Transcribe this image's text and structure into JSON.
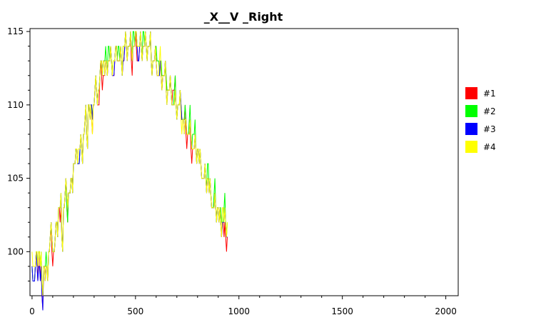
{
  "chart_data": {
    "type": "line",
    "title": "_X__V _Right",
    "xlabel": "",
    "ylabel": "",
    "xlim": [
      -10,
      2060
    ],
    "ylim": [
      97,
      115.2
    ],
    "x_ticks": [
      0,
      500,
      1000,
      1500,
      2000
    ],
    "y_ticks": [
      100,
      105,
      110,
      115
    ],
    "grid": false,
    "legend_position": "right",
    "x_step": 8,
    "series": [
      {
        "name": "#1",
        "color": "#ff0000",
        "values": [
          99,
          98,
          99,
          99,
          100,
          98,
          97,
          99,
          98,
          99,
          100,
          101,
          100,
          100,
          101,
          102,
          103,
          102,
          101,
          103,
          104,
          103,
          104,
          104,
          105,
          106,
          106,
          107,
          106,
          107,
          107,
          108,
          109,
          108,
          110,
          109,
          109,
          110,
          111,
          111,
          110,
          112,
          112,
          112,
          112,
          113,
          113,
          113,
          113,
          112,
          113,
          114,
          113,
          113,
          113,
          113,
          114,
          114,
          114,
          114,
          113,
          114,
          114,
          114,
          113,
          114,
          114,
          114,
          114,
          114,
          114,
          114,
          113,
          113,
          113,
          113,
          112,
          112,
          112,
          112,
          112,
          112,
          111,
          111,
          111,
          111,
          111,
          110,
          110,
          110,
          110,
          109,
          109,
          108,
          108,
          108,
          107,
          107,
          107,
          107,
          107,
          106,
          106,
          105,
          105,
          105,
          105,
          104,
          104,
          103,
          103,
          103,
          103,
          102,
          102,
          102,
          101,
          101,
          101
        ]
      },
      {
        "name": "#2",
        "color": "#00ff00",
        "values": [
          99,
          98,
          99,
          100,
          100,
          99,
          98,
          99,
          99,
          99,
          100,
          101,
          101,
          100,
          101,
          102,
          103,
          103,
          101,
          103,
          104,
          103,
          104,
          104,
          105,
          106,
          106,
          107,
          106,
          107,
          107,
          108,
          109,
          108,
          110,
          109,
          110,
          110,
          111,
          111,
          111,
          112,
          113,
          113,
          113,
          113,
          114,
          113,
          113,
          113,
          113,
          114,
          114,
          113,
          113,
          114,
          114,
          114,
          114,
          114,
          114,
          115,
          114,
          115,
          114,
          114,
          114,
          115,
          114,
          114,
          114,
          114,
          113,
          113,
          113,
          114,
          113,
          112,
          113,
          112,
          112,
          112,
          111,
          111,
          111,
          110,
          111,
          110,
          110,
          110,
          110,
          109,
          109,
          109,
          108,
          109,
          108,
          108,
          108,
          107,
          107,
          106,
          106,
          105,
          105,
          105,
          106,
          104,
          104,
          103,
          104,
          103,
          103,
          102,
          103,
          102,
          103,
          102,
          102
        ]
      },
      {
        "name": "#3",
        "color": "#0000ff",
        "values": [
          99,
          98,
          99,
          99,
          99,
          98,
          97,
          99,
          98,
          99,
          100,
          101,
          101,
          100,
          101,
          102,
          103,
          103,
          101,
          103,
          104,
          104,
          104,
          104,
          105,
          106,
          106,
          107,
          106,
          107,
          107,
          108,
          109,
          108,
          110,
          109,
          110,
          110,
          111,
          111,
          111,
          112,
          113,
          113,
          112,
          113,
          113,
          113,
          113,
          112,
          113,
          114,
          113,
          113,
          113,
          113,
          114,
          114,
          114,
          114,
          114,
          114,
          114,
          115,
          113,
          114,
          114,
          114,
          114,
          114,
          114,
          114,
          113,
          113,
          113,
          113,
          112,
          112,
          112,
          112,
          112,
          111,
          111,
          111,
          111,
          110,
          110,
          110,
          110,
          110,
          110,
          109,
          108,
          109,
          108,
          108,
          108,
          107,
          107,
          107,
          107,
          106,
          106,
          105,
          105,
          105,
          105,
          104,
          104,
          103,
          103,
          103,
          103,
          102,
          102,
          102,
          102,
          102,
          101
        ]
      },
      {
        "name": "#4",
        "color": "#ffff00",
        "values": [
          100,
          99,
          99,
          100,
          100,
          99,
          98,
          99,
          98,
          99,
          100,
          101,
          101,
          100,
          101,
          102,
          103,
          103,
          101,
          103,
          104,
          104,
          104,
          104,
          105,
          106,
          106,
          107,
          107,
          107,
          107,
          108,
          109,
          108,
          110,
          109,
          109,
          110,
          111,
          111,
          111,
          112,
          113,
          113,
          112,
          113,
          113,
          113,
          113,
          113,
          113,
          114,
          113,
          113,
          113,
          114,
          114,
          114,
          114,
          114,
          114,
          114,
          114,
          115,
          114,
          114,
          114,
          114,
          114,
          114,
          114,
          114,
          113,
          113,
          113,
          113,
          112,
          113,
          112,
          112,
          112,
          111,
          111,
          111,
          111,
          110,
          110,
          110,
          110,
          110,
          109,
          109,
          108,
          109,
          108,
          108,
          108,
          107,
          107,
          107,
          107,
          106,
          106,
          105,
          105,
          105,
          105,
          104,
          104,
          103,
          103,
          103,
          103,
          102,
          102,
          103,
          102,
          102,
          102
        ]
      }
    ]
  }
}
